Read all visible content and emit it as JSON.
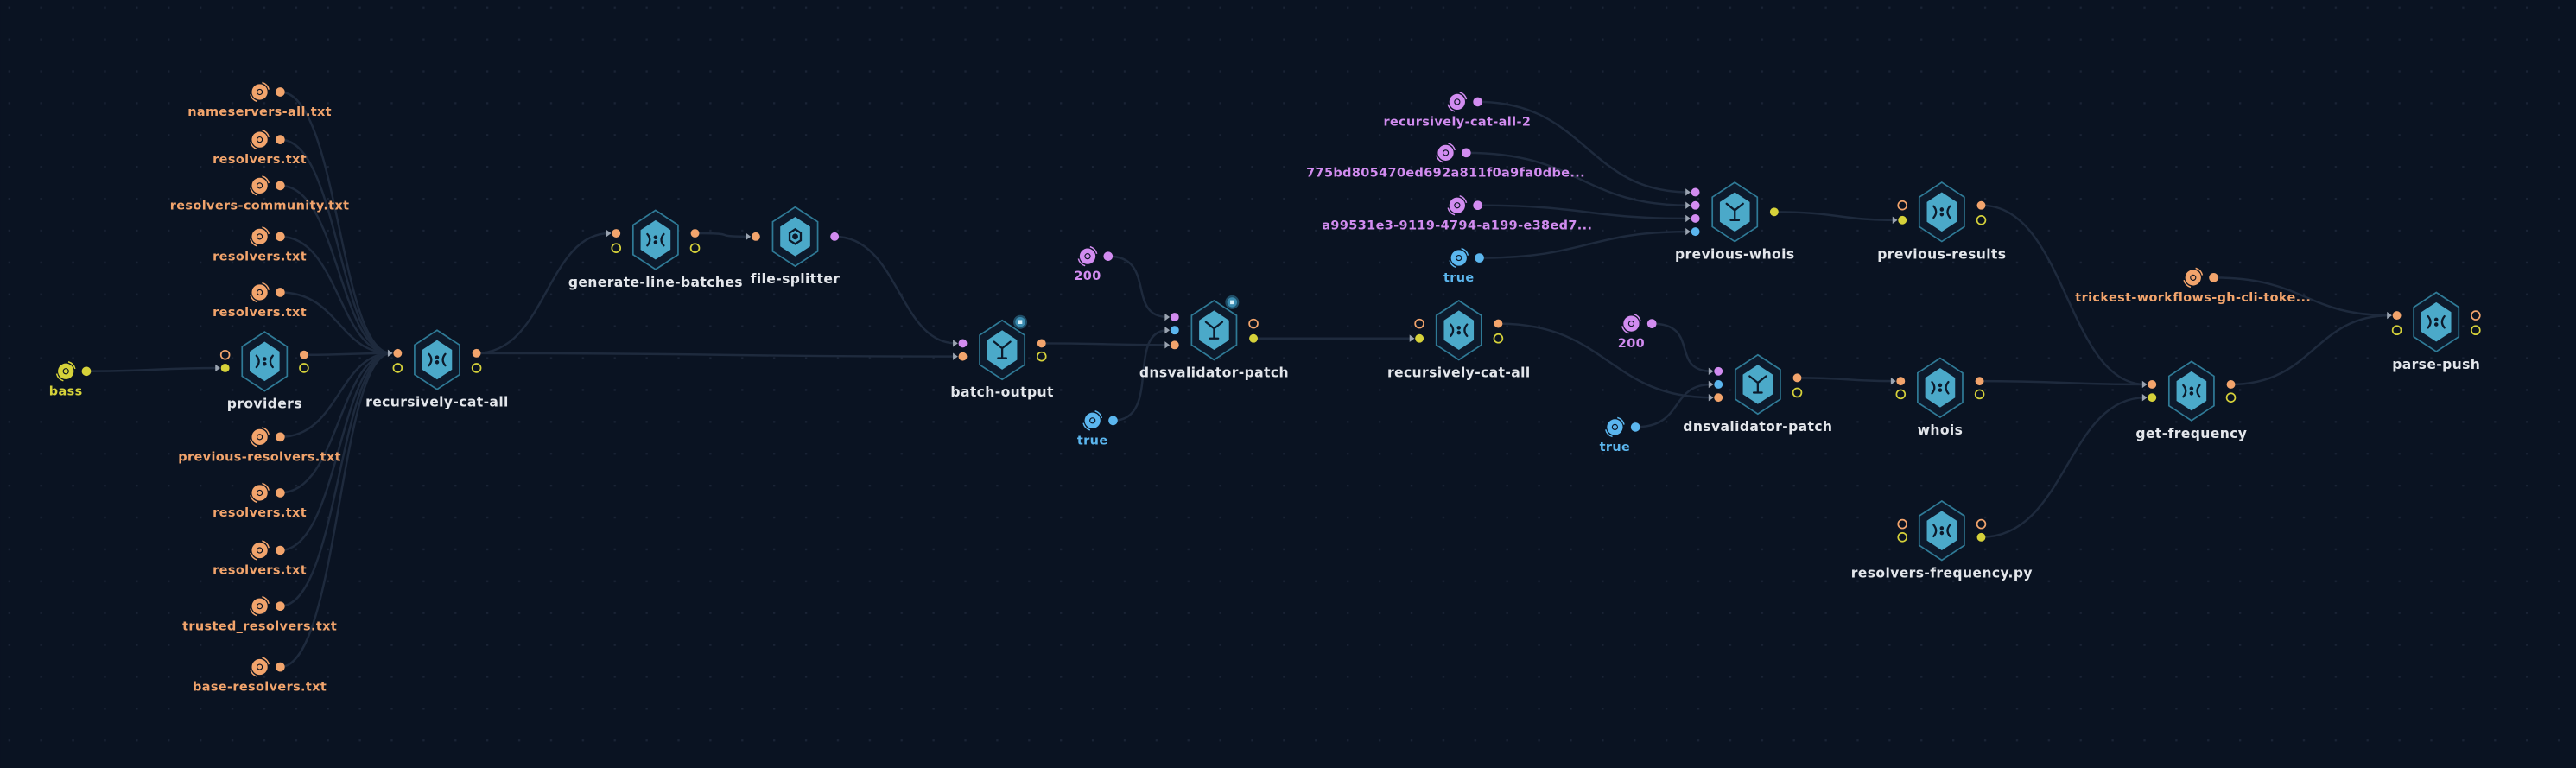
{
  "canvas": {
    "background": "#0a1322",
    "grid_dots": true
  },
  "colors": {
    "file": "#f2a46c",
    "bool_true": "#5bb6ee",
    "string": "#d28cf0",
    "yellow_port": "#d6d23a",
    "node_fill": "#4ba9c9",
    "node_border": "#2f7a96",
    "edge": "#1e2a3d",
    "label": "#e3e6eb"
  },
  "inputs": [
    {
      "id": "in-nameservers-all",
      "label": "nameservers-all.txt",
      "kind": "file",
      "icon": "file-icon"
    },
    {
      "id": "in-resolvers-1",
      "label": "resolvers.txt",
      "kind": "file",
      "icon": "file-icon"
    },
    {
      "id": "in-resolvers-community",
      "label": "resolvers-community.txt",
      "kind": "file",
      "icon": "file-icon"
    },
    {
      "id": "in-resolvers-2",
      "label": "resolvers.txt",
      "kind": "file",
      "icon": "file-icon"
    },
    {
      "id": "in-resolvers-3",
      "label": "resolvers.txt",
      "kind": "file",
      "icon": "file-icon"
    },
    {
      "id": "in-previous-resolvers",
      "label": "previous-resolvers.txt",
      "kind": "file",
      "icon": "file-icon"
    },
    {
      "id": "in-resolvers-4",
      "label": "resolvers.txt",
      "kind": "file",
      "icon": "file-icon"
    },
    {
      "id": "in-resolvers-5",
      "label": "resolvers.txt",
      "kind": "file",
      "icon": "file-icon"
    },
    {
      "id": "in-trusted-resolvers",
      "label": "trusted_resolvers.txt",
      "kind": "file",
      "icon": "file-icon"
    },
    {
      "id": "in-base-resolvers",
      "label": "base-resolvers.txt",
      "kind": "file",
      "icon": "file-icon"
    },
    {
      "id": "in-bass",
      "label": "bass",
      "kind": "yellow",
      "icon": "folder-icon"
    },
    {
      "id": "in-200-a",
      "label": "200",
      "kind": "string",
      "icon": "string-icon"
    },
    {
      "id": "in-true-a",
      "label": "true",
      "kind": "bool",
      "icon": "boolean-icon"
    },
    {
      "id": "in-recursively-cat-all-2",
      "label": "recursively-cat-all-2",
      "kind": "string",
      "icon": "string-icon"
    },
    {
      "id": "in-775bd",
      "label": "775bd805470ed692a811f0a9fa0dbe...",
      "kind": "string",
      "icon": "string-icon"
    },
    {
      "id": "in-a99531e3",
      "label": "a99531e3-9119-4794-a199-e38ed7...",
      "kind": "string",
      "icon": "string-icon"
    },
    {
      "id": "in-true-b",
      "label": "true",
      "kind": "bool",
      "icon": "boolean-icon"
    },
    {
      "id": "in-200-b",
      "label": "200",
      "kind": "string",
      "icon": "string-icon"
    },
    {
      "id": "in-true-c",
      "label": "true",
      "kind": "bool",
      "icon": "boolean-icon"
    },
    {
      "id": "in-trickest-token",
      "label": "trickest-workflows-gh-cli-toke...",
      "kind": "file",
      "icon": "file-icon"
    }
  ],
  "nodes": [
    {
      "id": "providers",
      "label": "providers",
      "icon": "script-icon"
    },
    {
      "id": "recursively-cat-all",
      "label": "recursively-cat-all",
      "icon": "script-icon"
    },
    {
      "id": "generate-line-batches",
      "label": "generate-line-batches",
      "icon": "script-icon"
    },
    {
      "id": "file-splitter",
      "label": "file-splitter",
      "icon": "splitter-icon"
    },
    {
      "id": "batch-output",
      "label": "batch-output",
      "icon": "tool-icon",
      "badge": "parallel-badge-icon"
    },
    {
      "id": "dnsvalidator-patch",
      "label": "dnsvalidator-patch",
      "icon": "tool-icon",
      "badge": "parallel-badge-icon"
    },
    {
      "id": "recursively-cat-all-b",
      "label": "recursively-cat-all",
      "icon": "script-icon"
    },
    {
      "id": "previous-whois",
      "label": "previous-whois",
      "icon": "tool-icon"
    },
    {
      "id": "previous-results",
      "label": "previous-results",
      "icon": "script-icon"
    },
    {
      "id": "dnsvalidator-patch-b",
      "label": "dnsvalidator-patch",
      "icon": "tool-icon"
    },
    {
      "id": "whois",
      "label": "whois",
      "icon": "script-icon"
    },
    {
      "id": "resolvers-frequency",
      "label": "resolvers-frequency.py",
      "icon": "script-icon"
    },
    {
      "id": "get-frequency",
      "label": "get-frequency",
      "icon": "script-icon"
    },
    {
      "id": "parse-push",
      "label": "parse-push",
      "icon": "script-icon"
    }
  ]
}
